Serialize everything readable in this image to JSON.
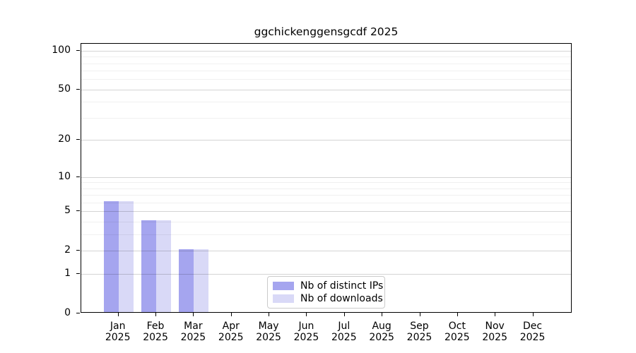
{
  "title": "ggchickenggensgcdf 2025",
  "chart_data": {
    "type": "bar",
    "title": "ggchickenggensgcdf 2025",
    "x_categories": [
      "Jan",
      "Feb",
      "Mar",
      "Apr",
      "May",
      "Jun",
      "Jul",
      "Aug",
      "Sep",
      "Oct",
      "Nov",
      "Dec"
    ],
    "x_year": "2025",
    "series": [
      {
        "name": "Nb of distinct IPs",
        "color": "#a5a5ef",
        "values": [
          6,
          4,
          2,
          0,
          0,
          0,
          0,
          0,
          0,
          0,
          0,
          0
        ]
      },
      {
        "name": "Nb of downloads",
        "color": "#d9d9f7",
        "values": [
          6,
          4,
          2,
          0,
          0,
          0,
          0,
          0,
          0,
          0,
          0,
          0
        ]
      }
    ],
    "y_axis": {
      "scale": "log1p",
      "major_ticks": [
        0,
        1,
        2,
        5,
        10,
        20,
        50,
        100
      ],
      "minor_gridlines": [
        3,
        4,
        6,
        7,
        8,
        9,
        30,
        40,
        60,
        70,
        80,
        90
      ],
      "top_value": 113
    },
    "grid": true,
    "legend_position": "bottom-center"
  },
  "colors": {
    "axis": "#000000",
    "grid_major": "rgba(0,0,0,0.17)",
    "grid_minor": "rgba(0,0,0,0.06)",
    "legend_border": "#cbcbcb",
    "background": "#ffffff"
  }
}
